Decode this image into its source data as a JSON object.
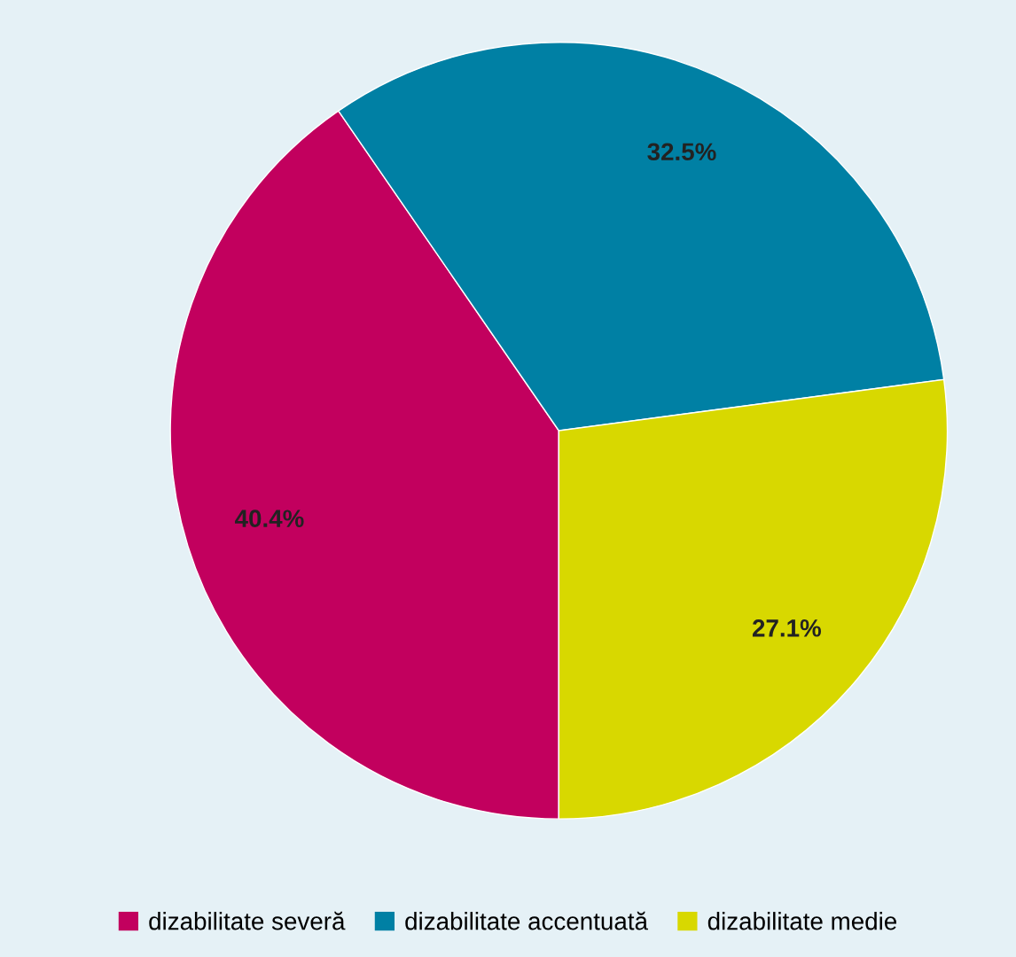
{
  "chart_data": {
    "type": "pie",
    "categories": [
      "dizabilitate severă",
      "dizabilitate accentuată",
      "dizabilitate medie"
    ],
    "values": [
      40.4,
      32.5,
      27.1
    ],
    "colors": [
      "#c2005e",
      "#0080a4",
      "#d8d800"
    ],
    "value_labels": [
      "40.4%",
      "32.5%",
      "27.1%"
    ],
    "legend": "bottom"
  }
}
